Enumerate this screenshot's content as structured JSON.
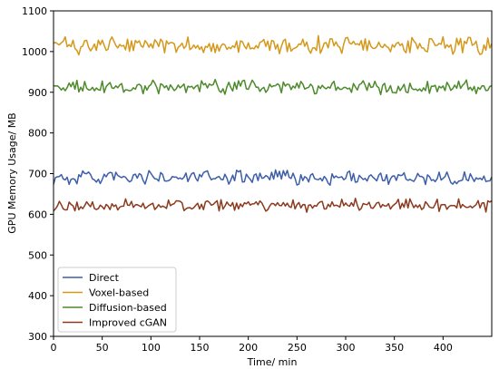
{
  "chart_data": {
    "type": "line",
    "xlabel": "Time/ min",
    "ylabel": "GPU Memory Usage/ MB",
    "xlim": [
      0,
      450
    ],
    "ylim": [
      300,
      1100
    ],
    "xticks": [
      0,
      50,
      100,
      150,
      200,
      250,
      300,
      350,
      400
    ],
    "yticks": [
      300,
      400,
      500,
      600,
      700,
      800,
      900,
      1000,
      1100
    ],
    "grid": false,
    "legend_position": "lower-left",
    "sample_interval_min": 2,
    "series": [
      {
        "name": "Direct",
        "color": "#3d5ea8",
        "mean": 690,
        "amplitude": 14
      },
      {
        "name": "Voxel-based",
        "color": "#d4981a",
        "mean": 1015,
        "amplitude": 18
      },
      {
        "name": "Diffusion-based",
        "color": "#4c8a2b",
        "mean": 912,
        "amplitude": 14
      },
      {
        "name": "Improved cGAN",
        "color": "#8b3a1e",
        "mean": 622,
        "amplitude": 13
      }
    ]
  }
}
